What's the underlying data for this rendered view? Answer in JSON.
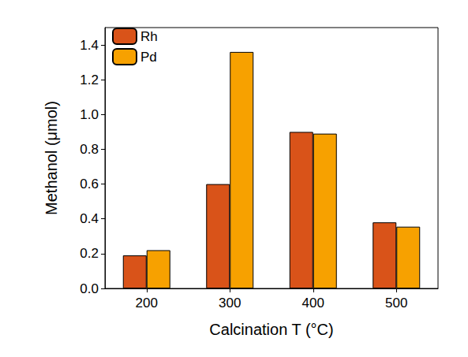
{
  "chart_data": {
    "type": "bar",
    "x_label": "Calcination T (°C)",
    "y_label": "Methanol (μmol)",
    "categories": [
      "200",
      "300",
      "400",
      "500"
    ],
    "series": [
      {
        "name": "Rh",
        "color": "#d95319",
        "values": [
          0.19,
          0.6,
          0.9,
          0.38
        ]
      },
      {
        "name": "Pd",
        "color": "#f7a100",
        "values": [
          0.22,
          1.36,
          0.89,
          0.355
        ]
      }
    ],
    "ylim": [
      0,
      1.5
    ],
    "yticks": [
      {
        "value": 0,
        "label": "0.0"
      },
      0.2,
      0.4,
      0.6,
      0.8,
      {
        "value": 1,
        "label": "1.0"
      },
      1.2,
      1.4
    ],
    "grid": false,
    "legend": "upper left"
  }
}
